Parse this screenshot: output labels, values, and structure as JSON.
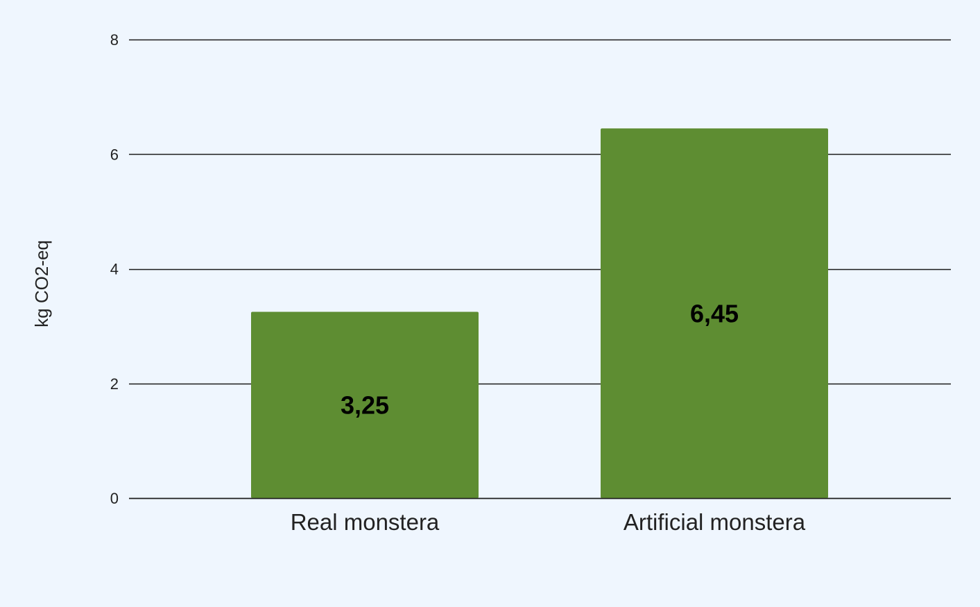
{
  "chart_data": {
    "type": "bar",
    "categories": [
      "Real monstera",
      "Artificial monstera"
    ],
    "values": [
      3.25,
      6.45
    ],
    "data_labels": [
      "3,25",
      "6,45"
    ],
    "title": "",
    "xlabel": "",
    "ylabel": "kg CO2-eq",
    "ylim": [
      0,
      8
    ],
    "yticks": [
      0,
      2,
      4,
      6,
      8
    ],
    "ytick_labels": [
      "0",
      "2",
      "4",
      "6",
      "8"
    ],
    "grid": true,
    "legend": "none"
  },
  "colors": {
    "background": "#eff6fe",
    "bar": "#5e8d32",
    "gridline": "#1a1a1a"
  }
}
